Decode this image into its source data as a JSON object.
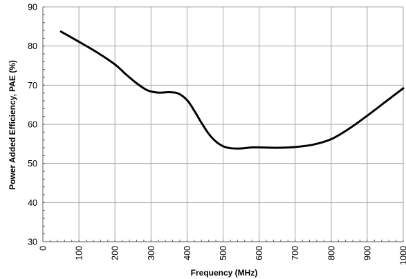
{
  "chart_data": {
    "type": "line",
    "xlabel": "Frequency (MHz)",
    "ylabel": "Power Added  Efficiency, PAE (%)",
    "xlim": [
      0,
      1000
    ],
    "ylim": [
      30,
      90
    ],
    "x_ticks": [
      0,
      100,
      200,
      300,
      400,
      500,
      600,
      700,
      800,
      900,
      1000
    ],
    "y_ticks": [
      30,
      40,
      50,
      60,
      70,
      80,
      90
    ],
    "x_minor_step": 20,
    "y_minor_step": 2,
    "grid": true,
    "legend": "none",
    "series": [
      {
        "color": "#000000",
        "x": [
          50,
          100,
          150,
          200,
          230,
          260,
          290,
          320,
          350,
          375,
          400,
          420,
          440,
          460,
          480,
          500,
          520,
          540,
          560,
          580,
          600,
          650,
          700,
          750,
          800,
          850,
          900,
          950,
          1000
        ],
        "y": [
          83.7,
          81.1,
          78.4,
          75.3,
          72.8,
          70.5,
          68.7,
          68.1,
          68.2,
          67.9,
          66.2,
          63.5,
          60.4,
          57.6,
          55.6,
          54.4,
          53.9,
          53.8,
          53.9,
          54.1,
          54.1,
          54.0,
          54.2,
          54.8,
          56.2,
          58.9,
          62.2,
          65.7,
          69.2
        ]
      }
    ]
  }
}
